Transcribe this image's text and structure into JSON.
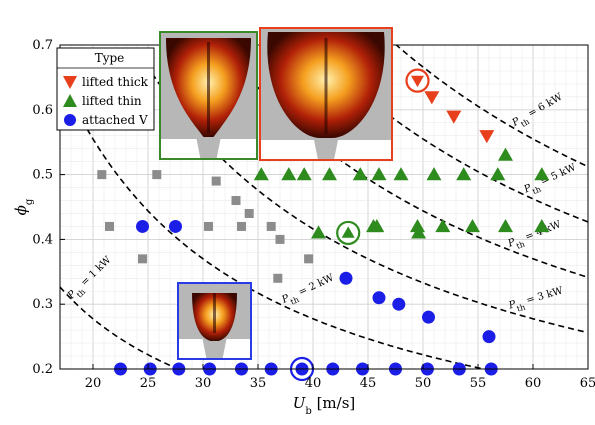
{
  "chart_data": {
    "type": "scatter",
    "xlabel_symbol": "U",
    "xlabel_sub": "b",
    "xlabel_unit": " [m/s]",
    "ylabel_symbol": "ϕ",
    "ylabel_sub": "g",
    "xlim": [
      17,
      65
    ],
    "ylim": [
      0.2,
      0.7
    ],
    "xticks": [
      20,
      25,
      30,
      35,
      40,
      45,
      50,
      55,
      60,
      65
    ],
    "yticks": [
      0.2,
      0.3,
      0.4,
      0.5,
      0.6,
      0.7
    ],
    "grid": true,
    "legend": {
      "title": "Type",
      "placement": "top-left",
      "entries": [
        {
          "label": "lifted thick",
          "series": "lifted_thick"
        },
        {
          "label": "lifted thin",
          "series": "lifted_thin"
        },
        {
          "label": "attached V",
          "series": "attached_v"
        }
      ]
    },
    "series": [
      {
        "key": "lifted_thick",
        "marker": "triangle-down",
        "color": "#e8401c",
        "points": [
          [
            49.5,
            0.645
          ],
          [
            50.8,
            0.62
          ],
          [
            52.8,
            0.59
          ],
          [
            55.8,
            0.56
          ]
        ]
      },
      {
        "key": "lifted_thin",
        "marker": "triangle-up",
        "color": "#2e8b1e",
        "points": [
          [
            35.3,
            0.5
          ],
          [
            37.8,
            0.5
          ],
          [
            39.2,
            0.5
          ],
          [
            41.5,
            0.5
          ],
          [
            44.3,
            0.5
          ],
          [
            46.0,
            0.5
          ],
          [
            48.0,
            0.5
          ],
          [
            51.0,
            0.5
          ],
          [
            53.7,
            0.5
          ],
          [
            56.8,
            0.5
          ],
          [
            57.5,
            0.53
          ],
          [
            60.8,
            0.5
          ],
          [
            40.5,
            0.41
          ],
          [
            43.2,
            0.41
          ],
          [
            45.5,
            0.42
          ],
          [
            45.8,
            0.42
          ],
          [
            49.5,
            0.42
          ],
          [
            49.6,
            0.41
          ],
          [
            51.8,
            0.42
          ],
          [
            54.5,
            0.42
          ],
          [
            57.5,
            0.42
          ],
          [
            60.8,
            0.42
          ]
        ]
      },
      {
        "key": "attached_v",
        "marker": "circle",
        "color": "#1a1ee6",
        "points": [
          [
            24.5,
            0.42
          ],
          [
            27.5,
            0.42
          ],
          [
            43.0,
            0.34
          ],
          [
            46.0,
            0.31
          ],
          [
            47.8,
            0.3
          ],
          [
            50.5,
            0.28
          ],
          [
            56.0,
            0.25
          ],
          [
            22.5,
            0.2
          ],
          [
            25.2,
            0.2
          ],
          [
            27.8,
            0.2
          ],
          [
            30.6,
            0.2
          ],
          [
            33.5,
            0.2
          ],
          [
            36.2,
            0.2
          ],
          [
            39.0,
            0.2
          ],
          [
            41.8,
            0.2
          ],
          [
            44.5,
            0.2
          ],
          [
            47.5,
            0.2
          ],
          [
            50.4,
            0.2
          ],
          [
            53.3,
            0.2
          ],
          [
            56.2,
            0.2
          ]
        ]
      },
      {
        "key": "unlabeled_gray",
        "marker": "square",
        "color": "#8c8c8c",
        "points": [
          [
            20.8,
            0.5
          ],
          [
            21.5,
            0.42
          ],
          [
            24.5,
            0.37
          ],
          [
            25.8,
            0.5
          ],
          [
            27.5,
            0.42
          ],
          [
            30.5,
            0.42
          ],
          [
            31.2,
            0.49
          ],
          [
            33.0,
            0.46
          ],
          [
            33.5,
            0.42
          ],
          [
            34.2,
            0.44
          ],
          [
            36.2,
            0.42
          ],
          [
            36.8,
            0.34
          ],
          [
            37.0,
            0.4
          ],
          [
            39.6,
            0.37
          ]
        ]
      }
    ],
    "highlighted": [
      {
        "series": "lifted_thick",
        "x": 49.5,
        "y": 0.645,
        "color": "#e8401c"
      },
      {
        "series": "lifted_thin",
        "x": 43.2,
        "y": 0.41,
        "color": "#2e8b1e"
      },
      {
        "series": "attached_v",
        "x": 39.0,
        "y": 0.2,
        "color": "#1a1ee6"
      }
    ],
    "power_curves": [
      {
        "value_kw": 1,
        "text_main": "P",
        "text_sub": "th",
        "text_val": " = 1 kW"
      },
      {
        "value_kw": 2,
        "text_main": "P",
        "text_sub": "th",
        "text_val": " = 2 kW"
      },
      {
        "value_kw": 3,
        "text_main": "P",
        "text_sub": "th",
        "text_val": " = 3 kW"
      },
      {
        "value_kw": 4,
        "text_main": "P",
        "text_sub": "th",
        "text_val": " = 4 kW"
      },
      {
        "value_kw": 5,
        "text_main": "P",
        "text_sub": "th",
        "text_val": " = 5 kW"
      },
      {
        "value_kw": 6,
        "text_main": "P",
        "text_sub": "th",
        "text_val": " = 6 kW"
      }
    ],
    "insets": [
      {
        "name": "lifted-thin-flame-image",
        "frame_color": "#3a8a2a"
      },
      {
        "name": "lifted-thick-flame-image",
        "frame_color": "#e8401c"
      },
      {
        "name": "attached-v-flame-image",
        "frame_color": "#2a3ae6"
      }
    ]
  }
}
